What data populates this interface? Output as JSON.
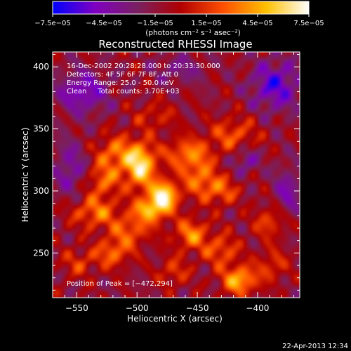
{
  "chart_data": {
    "type": "heatmap",
    "title": "Reconstructed RHESSI Image",
    "xlabel": "Heliocentric X (arcsec)",
    "ylabel": "Heliocentric Y (arcsec)",
    "xlim": [
      -570,
      -365
    ],
    "ylim": [
      214,
      412
    ],
    "x_ticks": [
      -550,
      -500,
      -450,
      -400
    ],
    "x_tick_labels": [
      "−550",
      "−500",
      "−450",
      "−400"
    ],
    "y_ticks": [
      250,
      300,
      350,
      400
    ],
    "y_tick_labels": [
      "250",
      "300",
      "350",
      "400"
    ],
    "colorbar": {
      "range": [
        -7.5e-05,
        7.5e-05
      ],
      "ticks": [
        -7.5e-05,
        -4.5e-05,
        -1.5e-05,
        1.5e-05,
        4.5e-05,
        7.5e-05
      ],
      "tick_labels": [
        "−7.5e−05",
        "−4.5e−05",
        "−1.5e−05",
        "1.5e−05",
        "4.5e−05",
        "7.5e−05"
      ],
      "unit_label": "(photons cm⁻² s⁻¹ asec⁻²)",
      "colors": [
        "#0000ff",
        "#8000c0",
        "#7a2060",
        "#b00000",
        "#ff5000",
        "#ffc000",
        "#ffffff"
      ]
    },
    "annotations": [
      "16-Dec-2002 20:28:28.000 to 20:33:30.000",
      "Detectors: 4F 5F 6F 7F 8F, Att 0",
      "Energy Range: 25.0 - 50.0 keV",
      "Clean     Total counts: 3.70E+03"
    ],
    "peak_label": "Position of Peak = [−472,294]",
    "peak": [
      -472,
      294
    ],
    "bright_sources": [
      {
        "x": -497,
        "y": 320,
        "sx": 9,
        "sy": 13,
        "value": 7.3e-05
      },
      {
        "x": -477,
        "y": 297,
        "sx": 8,
        "sy": 8,
        "value": 7.5e-05
      },
      {
        "x": -488,
        "y": 285,
        "sx": 10,
        "sy": 7,
        "value": 6e-05
      },
      {
        "x": -518,
        "y": 330,
        "sx": 12,
        "sy": 10,
        "value": 4.2e-05
      },
      {
        "x": -528,
        "y": 308,
        "sx": 10,
        "sy": 9,
        "value": 3.8e-05
      },
      {
        "x": -535,
        "y": 283,
        "sx": 14,
        "sy": 9,
        "value": 4.2e-05
      },
      {
        "x": -505,
        "y": 268,
        "sx": 12,
        "sy": 9,
        "value": 3.6e-05
      },
      {
        "x": -520,
        "y": 250,
        "sx": 10,
        "sy": 8,
        "value": 4e-05
      },
      {
        "x": -458,
        "y": 330,
        "sx": 13,
        "sy": 9,
        "value": 4.4e-05
      },
      {
        "x": -448,
        "y": 310,
        "sx": 10,
        "sy": 10,
        "value": 4e-05
      },
      {
        "x": -455,
        "y": 265,
        "sx": 10,
        "sy": 9,
        "value": 4.6e-05
      },
      {
        "x": -430,
        "y": 300,
        "sx": 10,
        "sy": 8,
        "value": 3.6e-05
      },
      {
        "x": -420,
        "y": 345,
        "sx": 14,
        "sy": 10,
        "value": 3.4e-05
      },
      {
        "x": -430,
        "y": 252,
        "sx": 10,
        "sy": 9,
        "value": 3.6e-05
      },
      {
        "x": -415,
        "y": 228,
        "sx": 10,
        "sy": 8,
        "value": 6e-05
      },
      {
        "x": -390,
        "y": 275,
        "sx": 9,
        "sy": 9,
        "value": 3.2e-05
      },
      {
        "x": -388,
        "y": 240,
        "sx": 9,
        "sy": 9,
        "value": 2.8e-05
      },
      {
        "x": -470,
        "y": 235,
        "sx": 9,
        "sy": 8,
        "value": 2.8e-05
      },
      {
        "x": -548,
        "y": 242,
        "sx": 10,
        "sy": 8,
        "value": 2.6e-05
      },
      {
        "x": -485,
        "y": 360,
        "sx": 12,
        "sy": 8,
        "value": 2.2e-05
      }
    ],
    "dark_sources": [
      {
        "x": -545,
        "y": 380,
        "sx": 15,
        "sy": 12,
        "value": -4e-05
      },
      {
        "x": -385,
        "y": 385,
        "sx": 14,
        "sy": 14,
        "value": -4.5e-05
      },
      {
        "x": -410,
        "y": 325,
        "sx": 8,
        "sy": 8,
        "value": -3e-05
      },
      {
        "x": -555,
        "y": 318,
        "sx": 10,
        "sy": 16,
        "value": -3e-05
      },
      {
        "x": -375,
        "y": 300,
        "sx": 8,
        "sy": 14,
        "value": -3e-05
      },
      {
        "x": -465,
        "y": 398,
        "sx": 14,
        "sy": 8,
        "value": -2.2e-05
      }
    ],
    "grid": false
  },
  "footer": {
    "timestamp": "22-Apr-2013 12:34"
  }
}
